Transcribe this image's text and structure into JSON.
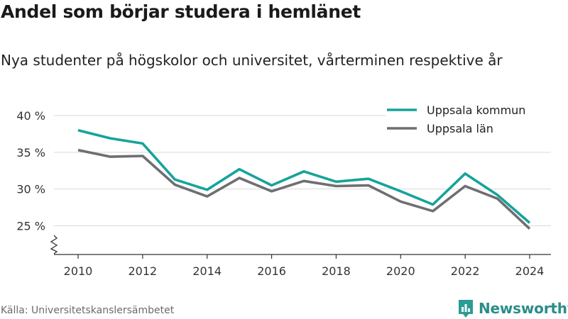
{
  "title": "Andel som börjar studera i hemlänet",
  "subtitle": "Nya studenter på högskolor och universitet, vårterminen respektive år",
  "source": "Källa: Universitetskanslersämbetet",
  "brand": {
    "name": "Newsworthy",
    "icon": "newsworthy-logo-icon",
    "color": "#2a9d96"
  },
  "chart_data": {
    "type": "line",
    "x": [
      2010,
      2011,
      2012,
      2013,
      2014,
      2015,
      2016,
      2017,
      2018,
      2019,
      2020,
      2021,
      2022,
      2023,
      2024
    ],
    "series": [
      {
        "name": "Uppsala kommun",
        "color": "#16a39a",
        "values": [
          38.0,
          36.9,
          36.2,
          31.3,
          29.9,
          32.7,
          30.5,
          32.4,
          31.0,
          31.4,
          29.7,
          27.9,
          32.1,
          29.2,
          25.4
        ]
      },
      {
        "name": "Uppsala län",
        "color": "#6e6e73",
        "values": [
          35.3,
          34.4,
          34.5,
          30.6,
          29.0,
          31.5,
          29.7,
          31.1,
          30.4,
          30.5,
          28.3,
          27.0,
          30.4,
          28.7,
          24.6
        ]
      }
    ],
    "xticks": [
      2010,
      2012,
      2014,
      2016,
      2018,
      2020,
      2022,
      2024
    ],
    "yticks": [
      25,
      30,
      35,
      40
    ],
    "ytick_labels": [
      "25 %",
      "30 %",
      "35 %",
      "40 %"
    ],
    "xlim": [
      2010,
      2024
    ],
    "ylim": [
      21,
      40
    ],
    "y_axis_break": true,
    "grid": "horizontal",
    "legend_position": "top-right",
    "xlabel": "",
    "ylabel": ""
  }
}
